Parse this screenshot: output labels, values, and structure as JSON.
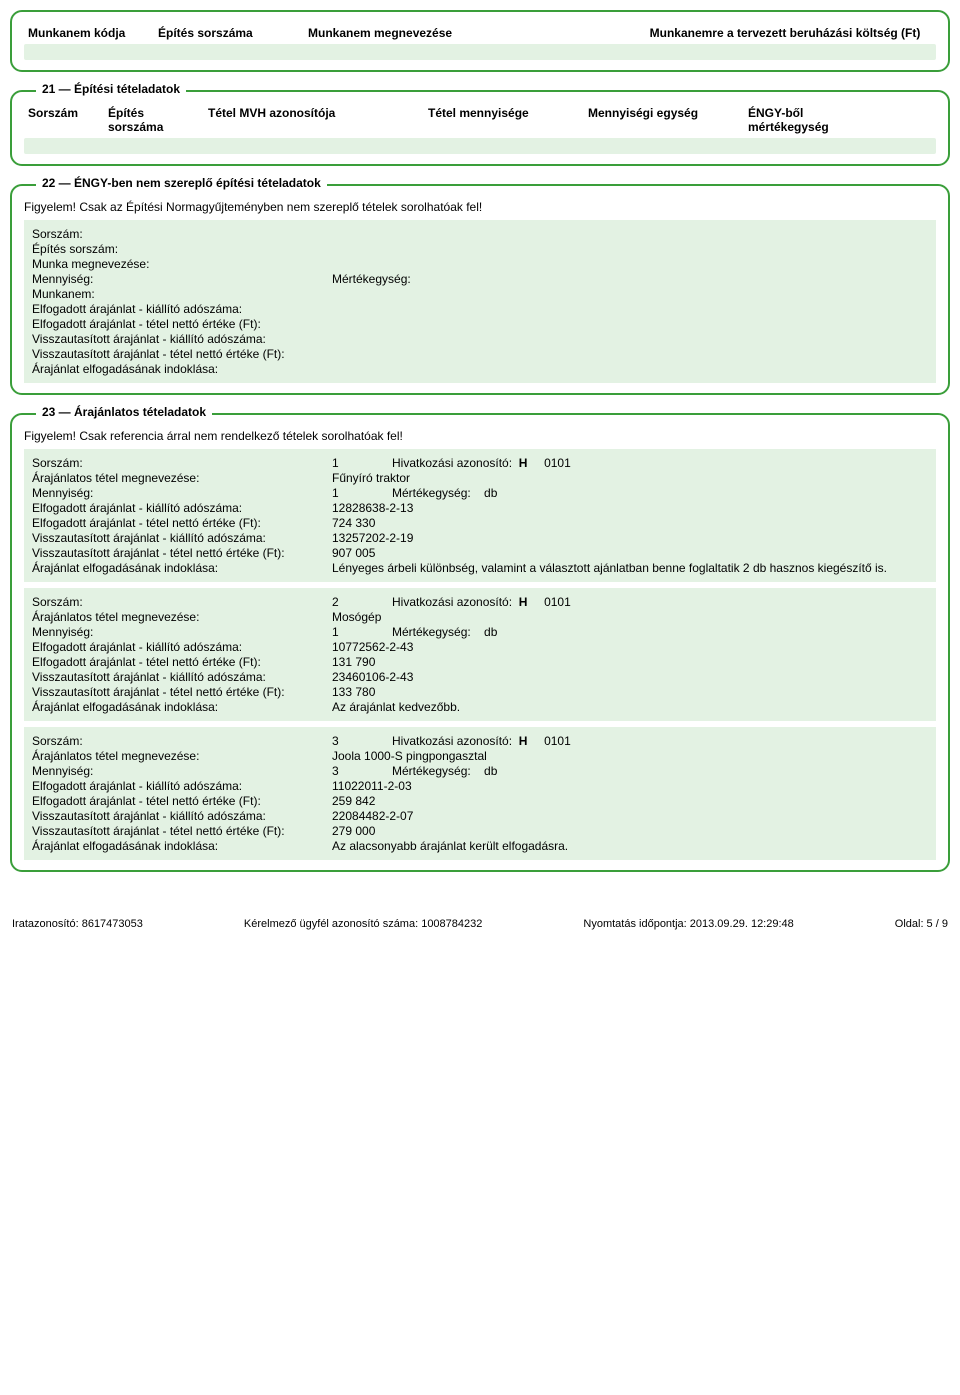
{
  "topHeader": {
    "col1": "Munkanem kódja",
    "col2": "Építés sorszáma",
    "col3": "Munkanem megnevezése",
    "col4": "Munkanemre a tervezett beruházási költség (Ft)"
  },
  "panel21": {
    "legend": "21 — Építési tételadatok",
    "cols": {
      "c1": "Sorszám",
      "c2a": "Építés",
      "c2b": "sorszáma",
      "c3": "Tétel MVH azonosítója",
      "c4": "Tétel mennyisége",
      "c5": "Mennyiségi egység",
      "c6a": "ÉNGY-ből",
      "c6b": "mértékegység"
    }
  },
  "panel22": {
    "legend": "22 — ÉNGY-ben nem szereplő építési tételadatok",
    "warn": "Figyelem! Csak az Építési Normagyűjteményben nem szereplő tételek sorolhatóak fel!",
    "labels": {
      "sorszam": "Sorszám:",
      "epites": "Építés sorszám:",
      "munkameg": "Munka megnevezése:",
      "mennyiseg": "Mennyiség:",
      "mertekegyseg": "Mértékegység:",
      "munkanem": "Munkanem:",
      "elfAdo": "Elfogadott árajánlat - kiállító adószáma:",
      "elfNetto": "Elfogadott árajánlat - tétel nettó értéke (Ft):",
      "visszaAdo": "Visszautasított árajánlat - kiállító adószáma:",
      "visszaNetto": "Visszautasított árajánlat - tétel nettó értéke (Ft):",
      "indok": "Árajánlat elfogadásának indoklása:"
    }
  },
  "panel23": {
    "legend": "23 — Árajánlatos tételadatok",
    "warn": "Figyelem! Csak referencia árral nem rendelkező tételek sorolhatóak fel!",
    "labels": {
      "sorszam": "Sorszám:",
      "hivAz": "Hivatkozási azonosító:",
      "tetelMeg": "Árajánlatos tétel megnevezése:",
      "mennyiseg": "Mennyiség:",
      "mertekegyseg": "Mértékegység:",
      "elfAdo": "Elfogadott árajánlat - kiállító adószáma:",
      "elfNetto": "Elfogadott árajánlat - tétel nettó értéke (Ft):",
      "visszaAdo": "Visszautasított árajánlat - kiállító adószáma:",
      "visszaNetto": "Visszautasított árajánlat - tétel nettó értéke (Ft):",
      "indok": "Árajánlat elfogadásának indoklása:"
    },
    "items": [
      {
        "sorszam": "1",
        "hivAzLetter": "H",
        "hivAzNum": "0101",
        "tetelMeg": "Fűnyíró traktor",
        "mennyiseg": "1",
        "mertekegyseg": "db",
        "elfAdo": "12828638-2-13",
        "elfNetto": "724 330",
        "visszaAdo": "13257202-2-19",
        "visszaNetto": "907 005",
        "indok": "Lényeges árbeli különbség, valamint a választott ajánlatban benne foglaltatik 2 db hasznos kiegészítő is."
      },
      {
        "sorszam": "2",
        "hivAzLetter": "H",
        "hivAzNum": "0101",
        "tetelMeg": "Mosógép",
        "mennyiseg": "1",
        "mertekegyseg": "db",
        "elfAdo": "10772562-2-43",
        "elfNetto": "131 790",
        "visszaAdo": "23460106-2-43",
        "visszaNetto": "133 780",
        "indok": "Az árajánlat kedvezőbb."
      },
      {
        "sorszam": "3",
        "hivAzLetter": "H",
        "hivAzNum": "0101",
        "tetelMeg": "Joola 1000-S pingpongasztal",
        "mennyiseg": "3",
        "mertekegyseg": "db",
        "elfAdo": "11022011-2-03",
        "elfNetto": "259 842",
        "visszaAdo": "22084482-2-07",
        "visszaNetto": "279 000",
        "indok": "Az alacsonyabb árajánlat került elfogadásra."
      }
    ]
  },
  "footer": {
    "irat": "Iratazonosító: 8617473053",
    "ugyfel": "Kérelmező ügyfél azonosító száma: 1008784232",
    "nyomt": "Nyomtatás időpontja:  2013.09.29.   12:29:48",
    "oldal": "Oldal:  5  /  9"
  }
}
